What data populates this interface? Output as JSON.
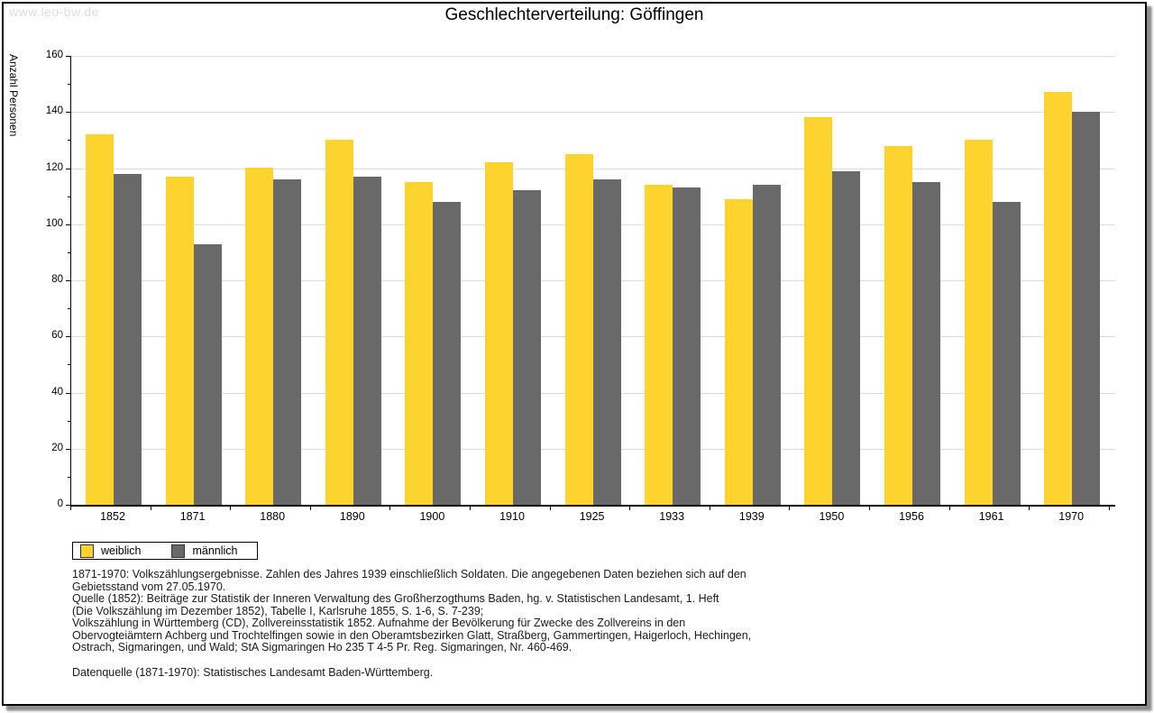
{
  "watermark": "www.leo-bw.de",
  "title": "Geschlechterverteilung: Göffingen",
  "chart_data": {
    "type": "bar",
    "title": "Geschlechterverteilung: Göffingen",
    "xlabel": "",
    "ylabel": "Anzahl Personen",
    "ylim": [
      0,
      160
    ],
    "ytick_step": 20,
    "grid": true,
    "legend_position": "bottom-left",
    "categories": [
      "1852",
      "1871",
      "1880",
      "1890",
      "1900",
      "1910",
      "1925",
      "1933",
      "1939",
      "1950",
      "1956",
      "1961",
      "1970"
    ],
    "series": [
      {
        "name": "weiblich",
        "color": "#fdd32e",
        "values": [
          132,
          117,
          120,
          130,
          115,
          122,
          125,
          114,
          109,
          138,
          128,
          130,
          147
        ]
      },
      {
        "name": "männlich",
        "color": "#696969",
        "values": [
          118,
          93,
          116,
          117,
          108,
          112,
          116,
          113,
          114,
          119,
          115,
          108,
          140
        ]
      }
    ]
  },
  "footer": {
    "lines": [
      "1871-1970: Volkszählungsergebnisse. Zahlen des Jahres 1939 einschließlich Soldaten. Die angegebenen Daten beziehen sich auf den",
      "Gebietsstand vom 27.05.1970.",
      "Quelle (1852): Beiträge zur Statistik der Inneren Verwaltung des Großherzogthums Baden, hg. v. Statistischen Landesamt, 1. Heft",
      "(Die Volkszählung im Dezember 1852), Tabelle I, Karlsruhe 1855, S. 1-6, S. 7-239;",
      "Volkszählung in Württemberg (CD), Zollvereinsstatistik 1852. Aufnahme der Bevölkerung für Zwecke des Zollvereins in den",
      "Obervogteiämtern Achberg und Trochtelfingen sowie in den Oberamtsbezirken Glatt, Straßberg, Gammertingen, Haigerloch, Hechingen,",
      "Ostrach, Sigmaringen, und Wald; StA Sigmaringen Ho 235 T 4-5 Pr. Reg. Sigmaringen, Nr. 460-469."
    ],
    "datenquelle": "Datenquelle (1871-1970): Statistisches Landesamt Baden-Württemberg."
  }
}
